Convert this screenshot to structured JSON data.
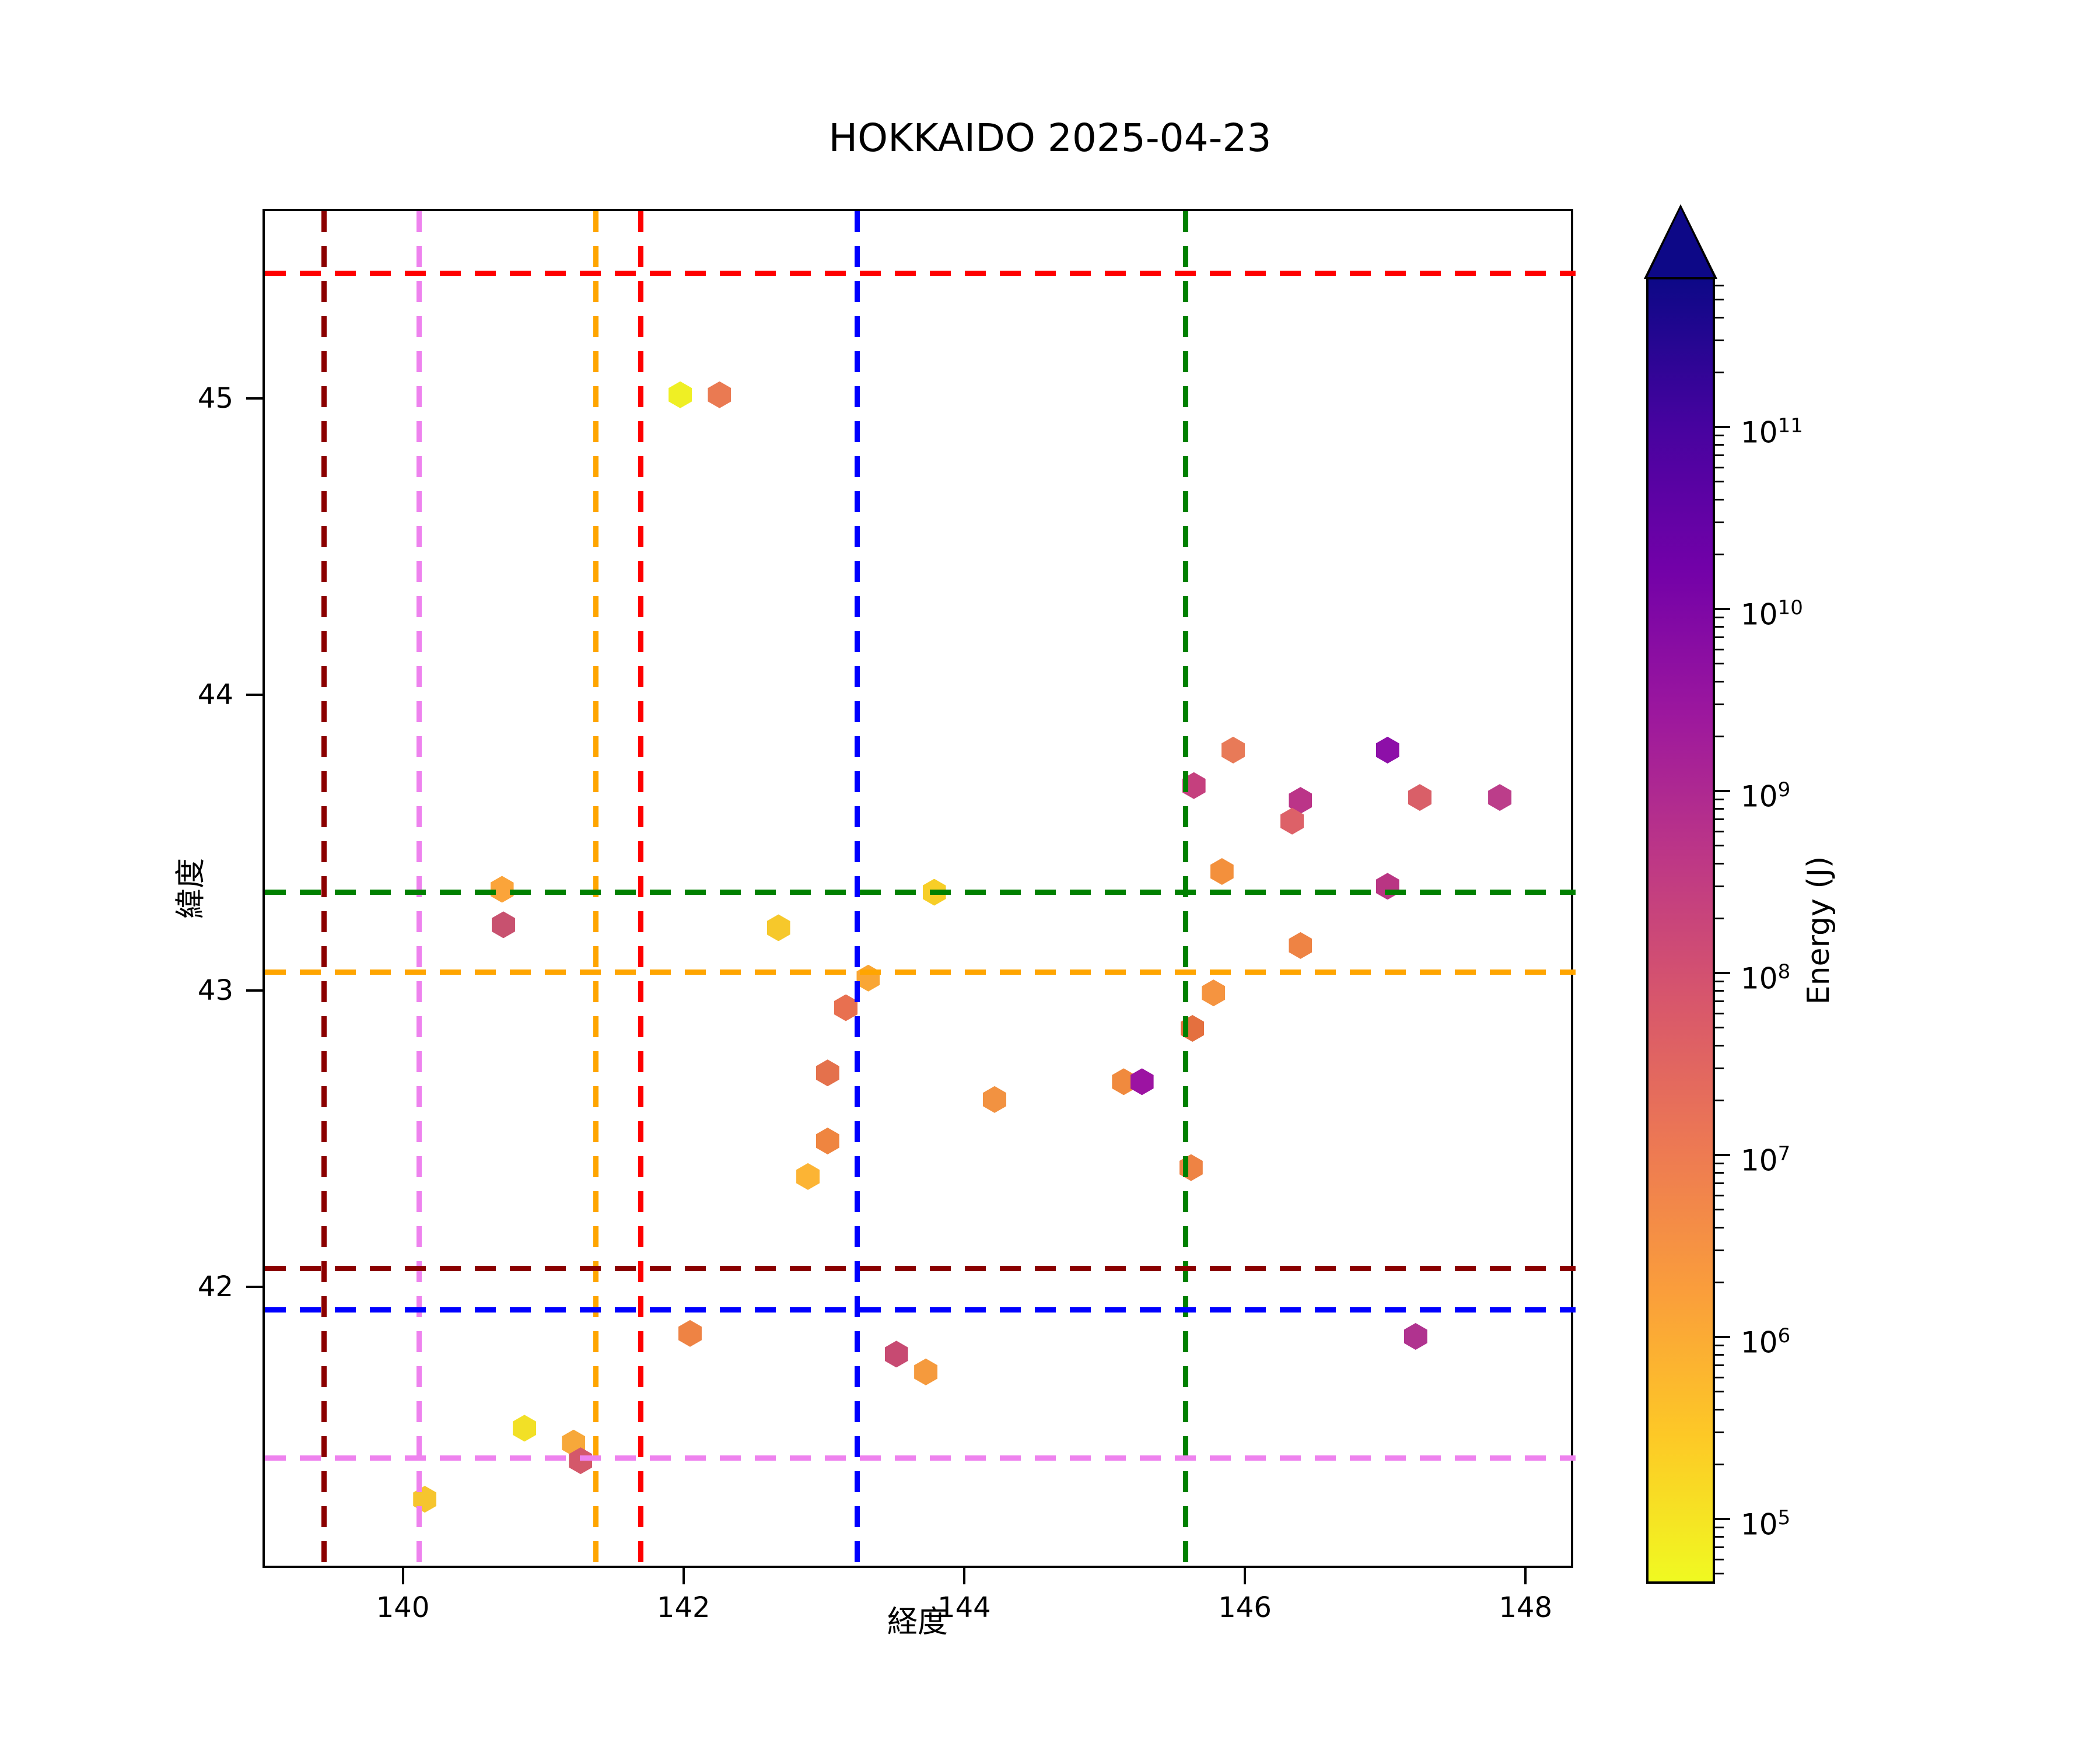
{
  "title": "HOKKAIDO 2025-04-23",
  "axes": {
    "xlabel": "経度",
    "ylabel": "緯度",
    "xlim": [
      139.0,
      148.34
    ],
    "ylim": [
      41.05,
      45.64
    ],
    "xticks": [
      "140",
      "142",
      "144",
      "146",
      "148"
    ],
    "yticks": [
      "45",
      "44",
      "43",
      "42"
    ]
  },
  "chart_data": {
    "type": "scatter",
    "marker": "hexagon",
    "title": "HOKKAIDO 2025-04-23",
    "xlabel": "経度",
    "ylabel": "緯度",
    "xlim": [
      139.0,
      148.34
    ],
    "ylim": [
      41.05,
      45.64
    ],
    "grid": false,
    "points": [
      {
        "lon": 141.96,
        "lat": 45.02,
        "energy_j": 100000.0,
        "color": "#efef24"
      },
      {
        "lon": 142.24,
        "lat": 45.02,
        "energy_j": 10000000.0,
        "color": "#ea7a52"
      },
      {
        "lon": 140.69,
        "lat": 43.35,
        "energy_j": 1500000.0,
        "color": "#fba43a"
      },
      {
        "lon": 140.7,
        "lat": 43.23,
        "energy_j": 150000000.0,
        "color": "#c8516f"
      },
      {
        "lon": 142.66,
        "lat": 43.22,
        "energy_j": 300000.0,
        "color": "#f6c82b"
      },
      {
        "lon": 143.77,
        "lat": 43.34,
        "energy_j": 250000.0,
        "color": "#f7ce27"
      },
      {
        "lon": 143.3,
        "lat": 43.05,
        "energy_j": 1200000.0,
        "color": "#f9a634"
      },
      {
        "lon": 143.14,
        "lat": 42.95,
        "energy_j": 12000000.0,
        "color": "#e87050"
      },
      {
        "lon": 143.01,
        "lat": 42.73,
        "energy_j": 20000000.0,
        "color": "#e4714c"
      },
      {
        "lon": 143.01,
        "lat": 42.5,
        "energy_j": 4000000.0,
        "color": "#ef8540"
      },
      {
        "lon": 142.87,
        "lat": 42.38,
        "energy_j": 700000.0,
        "color": "#fcb434"
      },
      {
        "lon": 144.2,
        "lat": 42.64,
        "energy_j": 4000000.0,
        "color": "#f29241"
      },
      {
        "lon": 145.12,
        "lat": 42.7,
        "energy_j": 5000000.0,
        "color": "#f08a3e"
      },
      {
        "lon": 145.25,
        "lat": 42.7,
        "energy_j": 4000000000.0,
        "color": "#9c13a2"
      },
      {
        "lon": 145.62,
        "lat": 43.7,
        "energy_j": 300000000.0,
        "color": "#c5407e"
      },
      {
        "lon": 145.9,
        "lat": 43.82,
        "energy_j": 10000000.0,
        "color": "#e87a58"
      },
      {
        "lon": 147.0,
        "lat": 43.82,
        "energy_j": 9000000000.0,
        "color": "#8d0fa8"
      },
      {
        "lon": 146.38,
        "lat": 43.65,
        "energy_j": 600000000.0,
        "color": "#bb3488"
      },
      {
        "lon": 146.32,
        "lat": 43.58,
        "energy_j": 50000000.0,
        "color": "#dd6168"
      },
      {
        "lon": 147.23,
        "lat": 43.66,
        "energy_j": 50000000.0,
        "color": "#d95f68"
      },
      {
        "lon": 147.8,
        "lat": 43.66,
        "energy_j": 600000000.0,
        "color": "#bc3d8a"
      },
      {
        "lon": 145.82,
        "lat": 43.41,
        "energy_j": 3000000.0,
        "color": "#f3903c"
      },
      {
        "lon": 147.0,
        "lat": 43.36,
        "energy_j": 700000000.0,
        "color": "#b93583"
      },
      {
        "lon": 146.38,
        "lat": 43.16,
        "energy_j": 5000000.0,
        "color": "#ee8344"
      },
      {
        "lon": 145.76,
        "lat": 43.0,
        "energy_j": 3000000.0,
        "color": "#f59440"
      },
      {
        "lon": 145.61,
        "lat": 42.88,
        "energy_j": 12000000.0,
        "color": "#e4703f"
      },
      {
        "lon": 145.6,
        "lat": 42.41,
        "energy_j": 5000000.0,
        "color": "#ee8344"
      },
      {
        "lon": 142.03,
        "lat": 41.85,
        "energy_j": 5000000.0,
        "color": "#ee8344"
      },
      {
        "lon": 143.5,
        "lat": 41.78,
        "energy_j": 150000000.0,
        "color": "#c74a72"
      },
      {
        "lon": 143.71,
        "lat": 41.72,
        "energy_j": 2000000.0,
        "color": "#f59a3d"
      },
      {
        "lon": 147.2,
        "lat": 41.84,
        "energy_j": 1000000000.0,
        "color": "#b0338f"
      },
      {
        "lon": 140.85,
        "lat": 41.53,
        "energy_j": 150000.0,
        "color": "#f2e026"
      },
      {
        "lon": 141.2,
        "lat": 41.48,
        "energy_j": 1500000.0,
        "color": "#f7a83a"
      },
      {
        "lon": 141.25,
        "lat": 41.42,
        "energy_j": 70000000.0,
        "color": "#d4586a"
      },
      {
        "lon": 140.14,
        "lat": 41.29,
        "energy_j": 300000.0,
        "color": "#f6c52e"
      }
    ],
    "vlines": [
      {
        "lon": 139.42,
        "color": "#8B0000"
      },
      {
        "lon": 140.1,
        "color": "#EE82EE"
      },
      {
        "lon": 141.36,
        "color": "#FFA500"
      },
      {
        "lon": 141.68,
        "color": "#FF0000"
      },
      {
        "lon": 143.22,
        "color": "#0000FF"
      },
      {
        "lon": 145.56,
        "color": "#008000"
      }
    ],
    "hlines": [
      {
        "lat": 45.43,
        "color": "#FF0000"
      },
      {
        "lat": 43.34,
        "color": "#008000"
      },
      {
        "lat": 43.07,
        "color": "#FFA500"
      },
      {
        "lat": 42.07,
        "color": "#8B0000"
      },
      {
        "lat": 41.93,
        "color": "#0000FF"
      },
      {
        "lat": 41.43,
        "color": "#EE82EE"
      }
    ],
    "colorbar": {
      "label": "Energy (J)",
      "scale": "log",
      "extend": "max",
      "tick_exponents": [
        11,
        10,
        9,
        8,
        7,
        6,
        5
      ],
      "cmap": "plasma_r",
      "gradient_top_to_bottom": [
        "#0d0887",
        "#46039f",
        "#7201a8",
        "#9c179e",
        "#bd3786",
        "#d8576b",
        "#ed7953",
        "#fa9e3b",
        "#fdc926",
        "#f0f921"
      ]
    }
  }
}
